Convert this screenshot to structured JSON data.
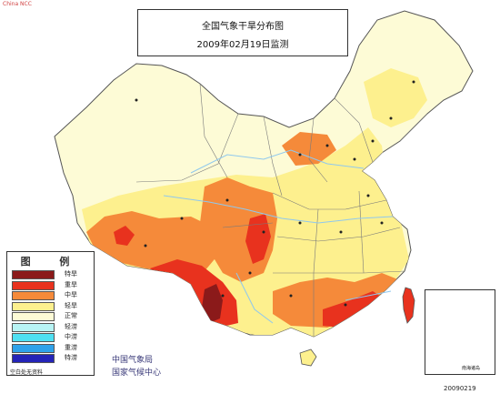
{
  "header": {
    "title": "全国气象干旱分布图",
    "subtitle": "2009年02月19日监测"
  },
  "legend": {
    "heading": "图 例",
    "items": [
      {
        "label": "特旱",
        "color": "#8b1a1a"
      },
      {
        "label": "重旱",
        "color": "#e8321e"
      },
      {
        "label": "中旱",
        "color": "#f58a3a"
      },
      {
        "label": "轻旱",
        "color": "#fdf08e"
      },
      {
        "label": "正常",
        "color": "#fdfbd6"
      },
      {
        "label": "轻涝",
        "color": "#b8f4f4"
      },
      {
        "label": "中涝",
        "color": "#4fe0f2"
      },
      {
        "label": "重涝",
        "color": "#2fa2ea"
      },
      {
        "label": "特涝",
        "color": "#2424b8"
      }
    ],
    "note": "空白处无资料"
  },
  "agency": {
    "line1": "中国气象局",
    "line2": "国家气候中心"
  },
  "inset": {
    "label": "南海诸岛"
  },
  "corner": {
    "top_left": "China  NCC",
    "bottom_right": "20090219"
  },
  "colors": {
    "normal_land": "#fdfbd6",
    "light_drought": "#fdf08e",
    "moderate_drought": "#f58a3a",
    "severe_drought": "#e8321e",
    "extreme_drought": "#8b1a1a",
    "water": "#8fc8ee",
    "border": "#444444"
  }
}
